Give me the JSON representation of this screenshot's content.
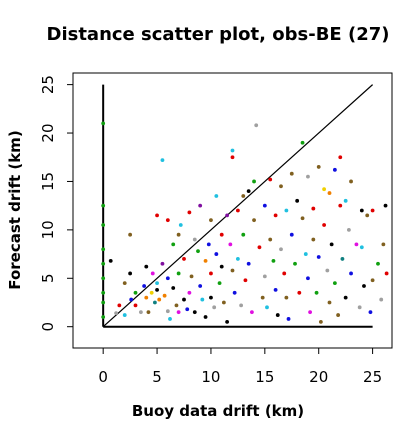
{
  "chart_data": {
    "type": "scatter",
    "title": "Distance scatter plot, obs-BE (27)",
    "xlabel": "Buoy data drift (km)",
    "ylabel": "Forecast drift (km)",
    "xlim": [
      -2.8,
      26.8
    ],
    "ylim": [
      -2.2,
      26.2
    ],
    "x_ticks": [
      0,
      5,
      10,
      15,
      20,
      25
    ],
    "y_ticks": [
      0,
      5,
      10,
      15,
      20,
      25
    ],
    "grid": false,
    "legend": "none",
    "reference_lines": [
      {
        "kind": "diagonal",
        "from": [
          0,
          0
        ],
        "to": [
          25,
          25
        ],
        "color": "#000000"
      },
      {
        "kind": "axis_vertical",
        "from": [
          0,
          0
        ],
        "to": [
          0,
          25
        ],
        "color": "#000000"
      },
      {
        "kind": "axis_horizontal",
        "from": [
          0,
          0
        ],
        "to": [
          25,
          0
        ],
        "color": "#000000"
      }
    ],
    "palette": {
      "black": "#000000",
      "red": "#e00000",
      "green": "#10a010",
      "blue": "#1010e0",
      "cyan": "#20c0e0",
      "magenta": "#e010e0",
      "yellow": "#f0d000",
      "gray": "#a0a0a0",
      "olive": "#806020",
      "orange": "#f08000",
      "purple": "#8010a0",
      "teal": "#108080"
    },
    "points": [
      [
        0,
        21,
        "green"
      ],
      [
        0,
        12.5,
        "green"
      ],
      [
        0,
        10.5,
        "green"
      ],
      [
        0,
        8,
        "green"
      ],
      [
        0,
        6.5,
        "green"
      ],
      [
        0,
        5,
        "green"
      ],
      [
        0,
        3.5,
        "green"
      ],
      [
        0,
        2.5,
        "green"
      ],
      [
        0,
        1,
        "green"
      ],
      [
        0.7,
        6.8,
        "black"
      ],
      [
        1.2,
        1.4,
        "gray"
      ],
      [
        1.5,
        2.2,
        "red"
      ],
      [
        2,
        4.5,
        "olive"
      ],
      [
        2,
        1.2,
        "cyan"
      ],
      [
        2.5,
        9.5,
        "olive"
      ],
      [
        2.5,
        5.5,
        "black"
      ],
      [
        2.6,
        2.8,
        "blue"
      ],
      [
        3,
        3.5,
        "green"
      ],
      [
        3,
        2.2,
        "red"
      ],
      [
        3.5,
        1.5,
        "gray"
      ],
      [
        3.8,
        4.2,
        "blue"
      ],
      [
        4,
        6.2,
        "black"
      ],
      [
        4,
        3,
        "orange"
      ],
      [
        4.2,
        1.5,
        "olive"
      ],
      [
        4.5,
        3.5,
        "yellow"
      ],
      [
        4.6,
        5.5,
        "magenta"
      ],
      [
        4.8,
        2.5,
        "teal"
      ],
      [
        5,
        11.5,
        "red"
      ],
      [
        5,
        4.5,
        "cyan"
      ],
      [
        5,
        3.8,
        "black"
      ],
      [
        5.2,
        2.8,
        "orange"
      ],
      [
        5.5,
        17.2,
        "cyan"
      ],
      [
        5.5,
        6.5,
        "purple"
      ],
      [
        5.7,
        3.2,
        "orange"
      ],
      [
        6,
        11,
        "red"
      ],
      [
        6,
        5,
        "blue"
      ],
      [
        6,
        1.6,
        "gray"
      ],
      [
        6.2,
        0.8,
        "cyan"
      ],
      [
        6.5,
        8.5,
        "green"
      ],
      [
        6.5,
        4,
        "black"
      ],
      [
        6.8,
        2.2,
        "olive"
      ],
      [
        7,
        9.5,
        "olive"
      ],
      [
        7,
        5.5,
        "green"
      ],
      [
        7,
        1.5,
        "magenta"
      ],
      [
        7.2,
        10.5,
        "cyan"
      ],
      [
        7.5,
        7,
        "red"
      ],
      [
        7.5,
        2.8,
        "black"
      ],
      [
        7.8,
        1.8,
        "blue"
      ],
      [
        8,
        11.8,
        "red"
      ],
      [
        8,
        3.5,
        "magenta"
      ],
      [
        8.2,
        5.2,
        "olive"
      ],
      [
        8.5,
        9,
        "gray"
      ],
      [
        8.5,
        1.5,
        "black"
      ],
      [
        8.8,
        7.8,
        "green"
      ],
      [
        9,
        12.5,
        "purple"
      ],
      [
        9,
        4.2,
        "blue"
      ],
      [
        9.2,
        2.8,
        "cyan"
      ],
      [
        9.5,
        6.8,
        "orange"
      ],
      [
        9.5,
        1,
        "black"
      ],
      [
        9.8,
        8.5,
        "blue"
      ],
      [
        10,
        11,
        "olive"
      ],
      [
        10,
        5.5,
        "red"
      ],
      [
        10,
        3,
        "black"
      ],
      [
        10.3,
        2,
        "gray"
      ],
      [
        10.5,
        13.5,
        "cyan"
      ],
      [
        10.5,
        7.5,
        "blue"
      ],
      [
        10.8,
        4.5,
        "green"
      ],
      [
        11,
        9.5,
        "red"
      ],
      [
        11,
        6.2,
        "black"
      ],
      [
        11.2,
        2.5,
        "olive"
      ],
      [
        11.5,
        11.5,
        "purple"
      ],
      [
        11.5,
        0.5,
        "black"
      ],
      [
        11.8,
        8.5,
        "magenta"
      ],
      [
        12,
        18.2,
        "cyan"
      ],
      [
        12,
        17.5,
        "red"
      ],
      [
        12,
        5.8,
        "olive"
      ],
      [
        12.2,
        3.5,
        "blue"
      ],
      [
        12.5,
        12,
        "red"
      ],
      [
        12.5,
        7,
        "cyan"
      ],
      [
        12.8,
        2.2,
        "gray"
      ],
      [
        13,
        13.5,
        "olive"
      ],
      [
        13,
        9.5,
        "green"
      ],
      [
        13.2,
        4.8,
        "red"
      ],
      [
        13.5,
        14,
        "black"
      ],
      [
        13.5,
        6.5,
        "blue"
      ],
      [
        13.8,
        1.5,
        "magenta"
      ],
      [
        14,
        15,
        "green"
      ],
      [
        14,
        11,
        "olive"
      ],
      [
        14.2,
        20.8,
        "gray"
      ],
      [
        14.5,
        8.2,
        "red"
      ],
      [
        14.8,
        3,
        "olive"
      ],
      [
        15,
        12.5,
        "blue"
      ],
      [
        15,
        5.2,
        "gray"
      ],
      [
        15.2,
        2,
        "cyan"
      ],
      [
        15.5,
        15.2,
        "red"
      ],
      [
        15.5,
        9,
        "olive"
      ],
      [
        15.8,
        6.8,
        "green"
      ],
      [
        16,
        11.5,
        "red"
      ],
      [
        16,
        3.8,
        "blue"
      ],
      [
        16.2,
        1.2,
        "black"
      ],
      [
        16.5,
        14.5,
        "olive"
      ],
      [
        16.5,
        8,
        "gray"
      ],
      [
        16.8,
        5.5,
        "red"
      ],
      [
        17,
        12,
        "cyan"
      ],
      [
        17,
        3,
        "olive"
      ],
      [
        17.2,
        0.8,
        "blue"
      ],
      [
        17.5,
        15.8,
        "olive"
      ],
      [
        17.5,
        9.5,
        "blue"
      ],
      [
        17.8,
        6.5,
        "green"
      ],
      [
        18,
        13,
        "black"
      ],
      [
        18.2,
        3.5,
        "red"
      ],
      [
        18.5,
        19,
        "green"
      ],
      [
        18.5,
        11.2,
        "olive"
      ],
      [
        18.8,
        7.5,
        "cyan"
      ],
      [
        19,
        15.5,
        "gray"
      ],
      [
        19,
        5,
        "blue"
      ],
      [
        19.2,
        1.5,
        "magenta"
      ],
      [
        19.5,
        12.2,
        "red"
      ],
      [
        19.5,
        9,
        "olive"
      ],
      [
        19.8,
        3.5,
        "green"
      ],
      [
        20,
        16.5,
        "olive"
      ],
      [
        20,
        7.2,
        "blue"
      ],
      [
        20.2,
        0.5,
        "olive"
      ],
      [
        20.5,
        14.2,
        "yellow"
      ],
      [
        20.5,
        10.5,
        "red"
      ],
      [
        20.8,
        5.8,
        "gray"
      ],
      [
        21,
        13.8,
        "orange"
      ],
      [
        21,
        2.5,
        "olive"
      ],
      [
        21.2,
        8.5,
        "black"
      ],
      [
        21.5,
        16.2,
        "blue"
      ],
      [
        21.5,
        4.5,
        "green"
      ],
      [
        21.8,
        1.2,
        "olive"
      ],
      [
        22,
        17.5,
        "red"
      ],
      [
        22,
        12.5,
        "red"
      ],
      [
        22.2,
        7,
        "teal"
      ],
      [
        22.5,
        13,
        "cyan"
      ],
      [
        22.5,
        3,
        "black"
      ],
      [
        22.8,
        10,
        "gray"
      ],
      [
        23,
        15,
        "olive"
      ],
      [
        23,
        5.5,
        "blue"
      ],
      [
        23.5,
        8.5,
        "magenta"
      ],
      [
        23.8,
        2,
        "gray"
      ],
      [
        24,
        12,
        "black"
      ],
      [
        24,
        8.2,
        "cyan"
      ],
      [
        24.2,
        4.2,
        "black"
      ],
      [
        24.5,
        11.5,
        "olive"
      ],
      [
        24.8,
        1.5,
        "blue"
      ],
      [
        25,
        12,
        "red"
      ],
      [
        25,
        4.8,
        "olive"
      ],
      [
        25.5,
        6.5,
        "green"
      ],
      [
        25.8,
        2.8,
        "gray"
      ],
      [
        26,
        8.5,
        "olive"
      ],
      [
        26.2,
        12.5,
        "black"
      ],
      [
        26.3,
        5.5,
        "red"
      ]
    ]
  }
}
